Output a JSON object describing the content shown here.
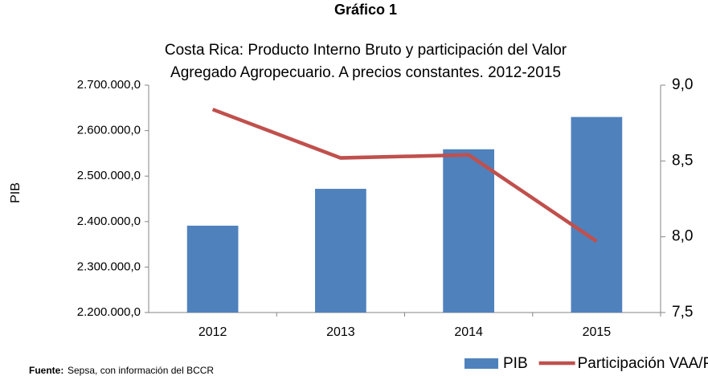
{
  "chart_data": {
    "type": "bar-line",
    "title": "Gráfico 1",
    "subtitle": [
      "Costa Rica:  Producto Interno Bruto y participación del Valor",
      "Agregado Agropecuario. A precios constantes. 2012-2015"
    ],
    "y_label": "PIB",
    "categories": [
      "2012",
      "2013",
      "2014",
      "2015"
    ],
    "series": [
      {
        "name": "PIB",
        "type": "bar",
        "color": "#4f81bd",
        "values": [
          2391000,
          2472000,
          2559000,
          2630000
        ]
      },
      {
        "name": "Participación VAA/PIB",
        "type": "line",
        "axis": "y2",
        "color": "#c0504d",
        "values": [
          8.84,
          8.52,
          8.54,
          7.97
        ]
      }
    ],
    "ylim": [
      2200000,
      2700000
    ],
    "yticks": [
      {
        "value": 2200000,
        "label": "2.200.000,0"
      },
      {
        "value": 2300000,
        "label": "2.300.000,0"
      },
      {
        "value": 2400000,
        "label": "2.400.000,0"
      },
      {
        "value": 2500000,
        "label": "2.500.000,0"
      },
      {
        "value": 2600000,
        "label": "2.600.000,0"
      },
      {
        "value": 2700000,
        "label": "2.700.000,0"
      }
    ],
    "y2lim": [
      7.5,
      9.0
    ],
    "y2ticks": [
      {
        "value": 7.5,
        "label": "7,5"
      },
      {
        "value": 8.0,
        "label": "8,0"
      },
      {
        "value": 8.5,
        "label": "8,5"
      },
      {
        "value": 9.0,
        "label": "9,0"
      }
    ],
    "grid": false,
    "legend": "bottom-right",
    "source_label": "Fuente:",
    "source": "Sepsa, con información del BCCR"
  }
}
